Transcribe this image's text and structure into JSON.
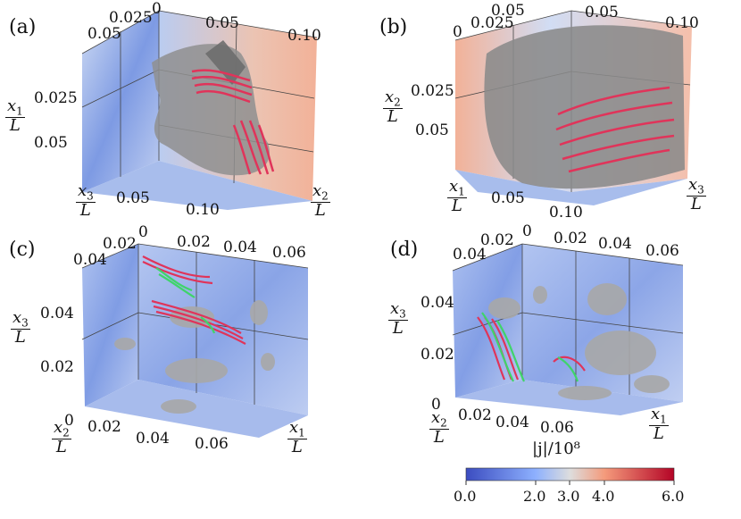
{
  "panels": {
    "a": {
      "label": "(a)",
      "top_ticks": [
        "0.025",
        "0",
        "0.05",
        "0.10",
        "0.05"
      ],
      "left_ticks": [
        "0.025",
        "0.05"
      ],
      "bottom_ticks": [
        "0.05",
        "0.10"
      ],
      "axis_left": {
        "num": "x",
        "sub": "1",
        "den": "L"
      },
      "axis_bottom_left": {
        "num": "x",
        "sub": "3",
        "den": "L"
      },
      "axis_bottom_right": {
        "num": "x",
        "sub": "2",
        "den": "L"
      }
    },
    "b": {
      "label": "(b)",
      "top_ticks": [
        "0.025",
        "0.05",
        "0",
        "0.05",
        "0.10"
      ],
      "left_ticks": [
        "0.025",
        "0.05"
      ],
      "bottom_ticks": [
        "0.05",
        "0.10"
      ],
      "axis_left": {
        "num": "x",
        "sub": "2",
        "den": "L"
      },
      "axis_bottom_left": {
        "num": "x",
        "sub": "1",
        "den": "L"
      },
      "axis_bottom_right": {
        "num": "x",
        "sub": "3",
        "den": "L"
      }
    },
    "c": {
      "label": "(c)",
      "top_ticks": [
        "0.02",
        "0",
        "0.02",
        "0.04",
        "0.06",
        "0.04"
      ],
      "left_ticks": [
        "0.04",
        "0.02",
        "0"
      ],
      "bottom_ticks": [
        "0.02",
        "0.04",
        "0.06"
      ],
      "axis_left": {
        "num": "x",
        "sub": "3",
        "den": "L"
      },
      "axis_bottom_left": {
        "num": "x",
        "sub": "2",
        "den": "L"
      },
      "axis_bottom_right": {
        "num": "x",
        "sub": "1",
        "den": "L"
      }
    },
    "d": {
      "label": "(d)",
      "top_ticks": [
        "0.02",
        "0",
        "0.02",
        "0.04",
        "0.06",
        "0.04"
      ],
      "left_ticks": [
        "0.04",
        "0.02",
        "0"
      ],
      "bottom_ticks": [
        "0.02",
        "0.04",
        "0.06"
      ],
      "axis_left": {
        "num": "x",
        "sub": "3",
        "den": "L"
      },
      "axis_bottom_left": {
        "num": "x",
        "sub": "2",
        "den": "L"
      },
      "axis_bottom_right": {
        "num": "x",
        "sub": "1",
        "den": "L"
      }
    }
  },
  "colorbar": {
    "title": "|j|/10⁸",
    "ticks": [
      "0.0",
      "2.0",
      "3.0",
      "4.0",
      "6.0"
    ],
    "colors": [
      "#3b4cc0",
      "#8db0fe",
      "#dddddd",
      "#f49a7b",
      "#b40426"
    ]
  },
  "colors": {
    "field_lines_red": "#e0345a",
    "field_lines_green": "#3fd46a",
    "isosurface": "#9a9a9a"
  }
}
